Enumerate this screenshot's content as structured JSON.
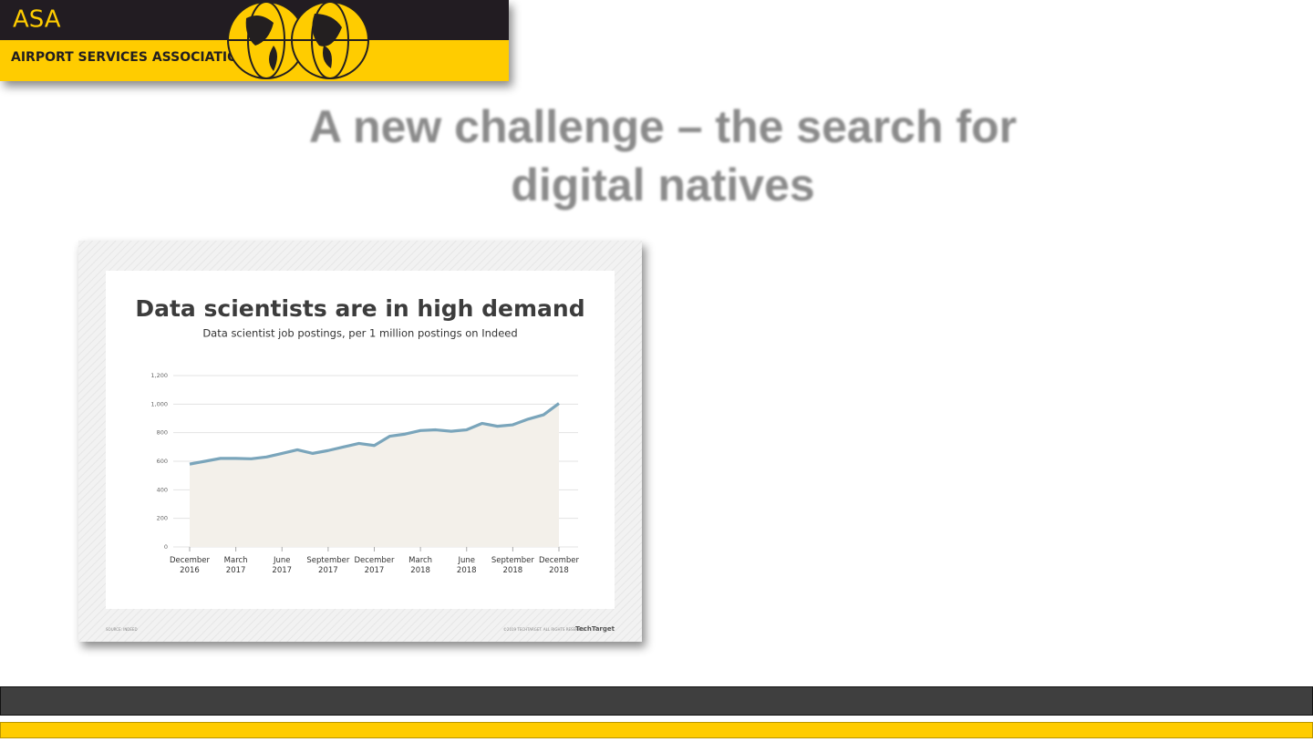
{
  "header": {
    "logo": "ASA",
    "organization": "AIRPORT SERVICES ASSOCIATION"
  },
  "slide_title": [
    "A new challenge – the search for",
    "digital natives"
  ],
  "source": "SOURCE: INDEED",
  "copyright": "©2019 TECHTARGET. ALL RIGHTS RESERVED",
  "brand": "TechTarget",
  "chart_data": {
    "type": "area",
    "title": "Data scientists are in high demand",
    "subtitle": "Data scientist job postings, per 1 million postings on Indeed",
    "categories": [
      "December 2016",
      null,
      null,
      "March 2017",
      null,
      null,
      "June 2017",
      null,
      null,
      "September 2017",
      null,
      null,
      "December 2017",
      null,
      null,
      "March 2018",
      null,
      null,
      "June 2018",
      null,
      null,
      "September 2018",
      null,
      null,
      "December 2018"
    ],
    "series": [
      {
        "name": "Job postings",
        "color": "#7aa5bb",
        "values": [
          580,
          600,
          620,
          620,
          617,
          630,
          655,
          680,
          655,
          675,
          700,
          725,
          710,
          775,
          790,
          815,
          820,
          810,
          820,
          865,
          845,
          855,
          895,
          925,
          1005
        ]
      }
    ],
    "fill": "#f3f0ea",
    "ylim": [
      0,
      1200
    ],
    "yticks": [
      0,
      200,
      400,
      600,
      800,
      {
        "value": 1000,
        "label": "1,000"
      },
      {
        "value": 1200,
        "label": "1,200"
      }
    ],
    "grid": true
  }
}
